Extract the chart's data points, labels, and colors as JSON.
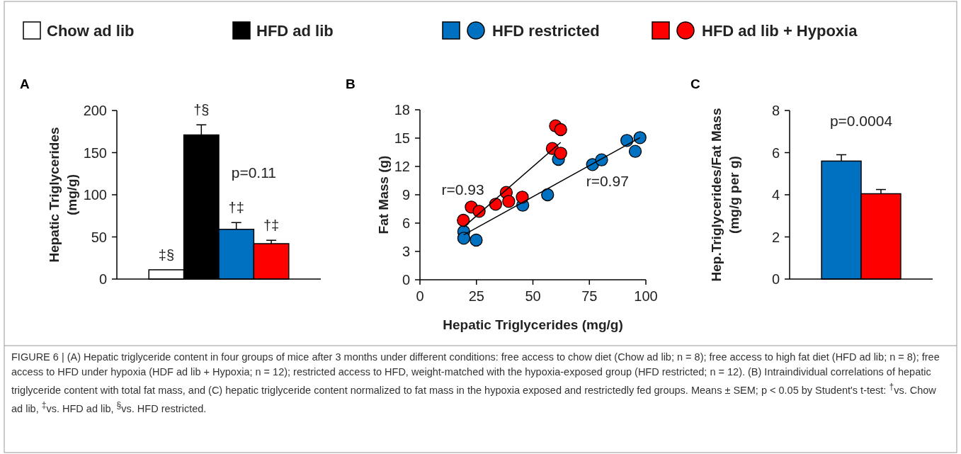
{
  "chart_data": [
    {
      "type": "bar",
      "title": "A",
      "ylabel": "Hepatic Triglycerides\n(mg/g)",
      "categories": [
        null
      ],
      "ylim": [
        0,
        200
      ],
      "yticks": [
        0,
        50,
        100,
        150,
        200
      ],
      "legend": "top",
      "series": [
        {
          "name": "Chow ad lib",
          "color": "#ffffff",
          "values": [
            11
          ]
        },
        {
          "name": "HFD ad lib",
          "color": "#000000",
          "values": [
            171
          ],
          "errors": [
            12
          ]
        },
        {
          "name": "HFD restricted",
          "color": "#0070c0",
          "values": [
            59
          ],
          "errors": [
            8
          ]
        },
        {
          "name": "HFD ad lib + Hypoxia",
          "color": "#ff0000",
          "values": [
            42
          ],
          "errors": [
            4
          ]
        }
      ],
      "annotations": [
        "‡§",
        "†§",
        "†‡",
        "†‡",
        "p=0.11",
        "FIGURE 6 | (A) Hepatic triglyceride content in four groups of mice after 3 months under different conditions: free access to chow diet (Chow ad lib; n = 8); free access to high fat diet (HFD ad lib; n = 8); free access to HFD under hypoxia (HDF ad lib + Hypoxia; n = 12); restricted access to HFD, weight-matched with the hypoxia-exposed group (HFD restricted; n = 12). (B) Intraindividual correlations of hepatic triglyceride content with total fat mass, and (C) hepatic triglyceride content normalized to fat mass in the hypoxia exposed and restrictedly fed groups. Means ± SEM; p < 0.05 by Student's t-test: $^{†}$vs. Chow ad lib, $^{‡}$vs. HFD ad lib, $^{§}$vs. HFD restricted."
      ]
    },
    {
      "type": "scatter",
      "title": "B",
      "xlabel": "Hepatic Triglycerides (mg/g)",
      "ylabel": "Fat Mass (g)",
      "xlim": [
        0,
        100
      ],
      "xticks": [
        0,
        25,
        50,
        75,
        100
      ],
      "ylim": [
        0,
        18
      ],
      "yticks": [
        0,
        3,
        6,
        9,
        12,
        15,
        18
      ],
      "series": [
        {
          "type": "line",
          "marker": "none",
          "color": "#000000",
          "x": [
            19.4,
            62.3
          ],
          "values": [
            5.6,
            14.55
          ]
        },
        {
          "type": "line",
          "marker": "none",
          "color": "#000000",
          "x": [
            19.4,
            97.4
          ],
          "values": [
            4.75,
            15.05
          ]
        },
        {
          "marker": "circle",
          "color": "#0070c0",
          "x": [
            19.4,
            19.4,
            24.9,
            45.5,
            56.5,
            61.3,
            76.4,
            80.4,
            91.6,
            97.4,
            95.3
          ],
          "values": [
            5.1,
            4.4,
            4.2,
            7.9,
            9.0,
            12.75,
            12.2,
            12.7,
            14.75,
            15.05,
            13.6
          ]
        },
        {
          "marker": "circle",
          "color": "#ff0000",
          "x": [
            19.2,
            22.7,
            26.2,
            33.5,
            38.2,
            39.3,
            45.3,
            58.6,
            60.0,
            62.3,
            62.3
          ],
          "values": [
            6.3,
            7.7,
            7.25,
            8.0,
            9.25,
            8.3,
            8.75,
            13.9,
            16.3,
            15.9,
            13.4
          ]
        }
      ],
      "annotations": [
        "r=0.93",
        "r=0.97"
      ]
    },
    {
      "type": "bar",
      "title": "C",
      "ylabel": "Hep.Triglycerides/Fat Mass\n(mg/g per g)",
      "categories": [
        null
      ],
      "ylim": [
        0,
        8
      ],
      "yticks": [
        0,
        2,
        4,
        6,
        8
      ],
      "series": [
        {
          "color": "#0070c0",
          "values": [
            5.6
          ],
          "errors": [
            0.3
          ]
        },
        {
          "color": "#ff0000",
          "values": [
            4.05
          ],
          "errors": [
            0.2
          ]
        }
      ],
      "annotations": [
        "p=0.0004"
      ]
    }
  ]
}
